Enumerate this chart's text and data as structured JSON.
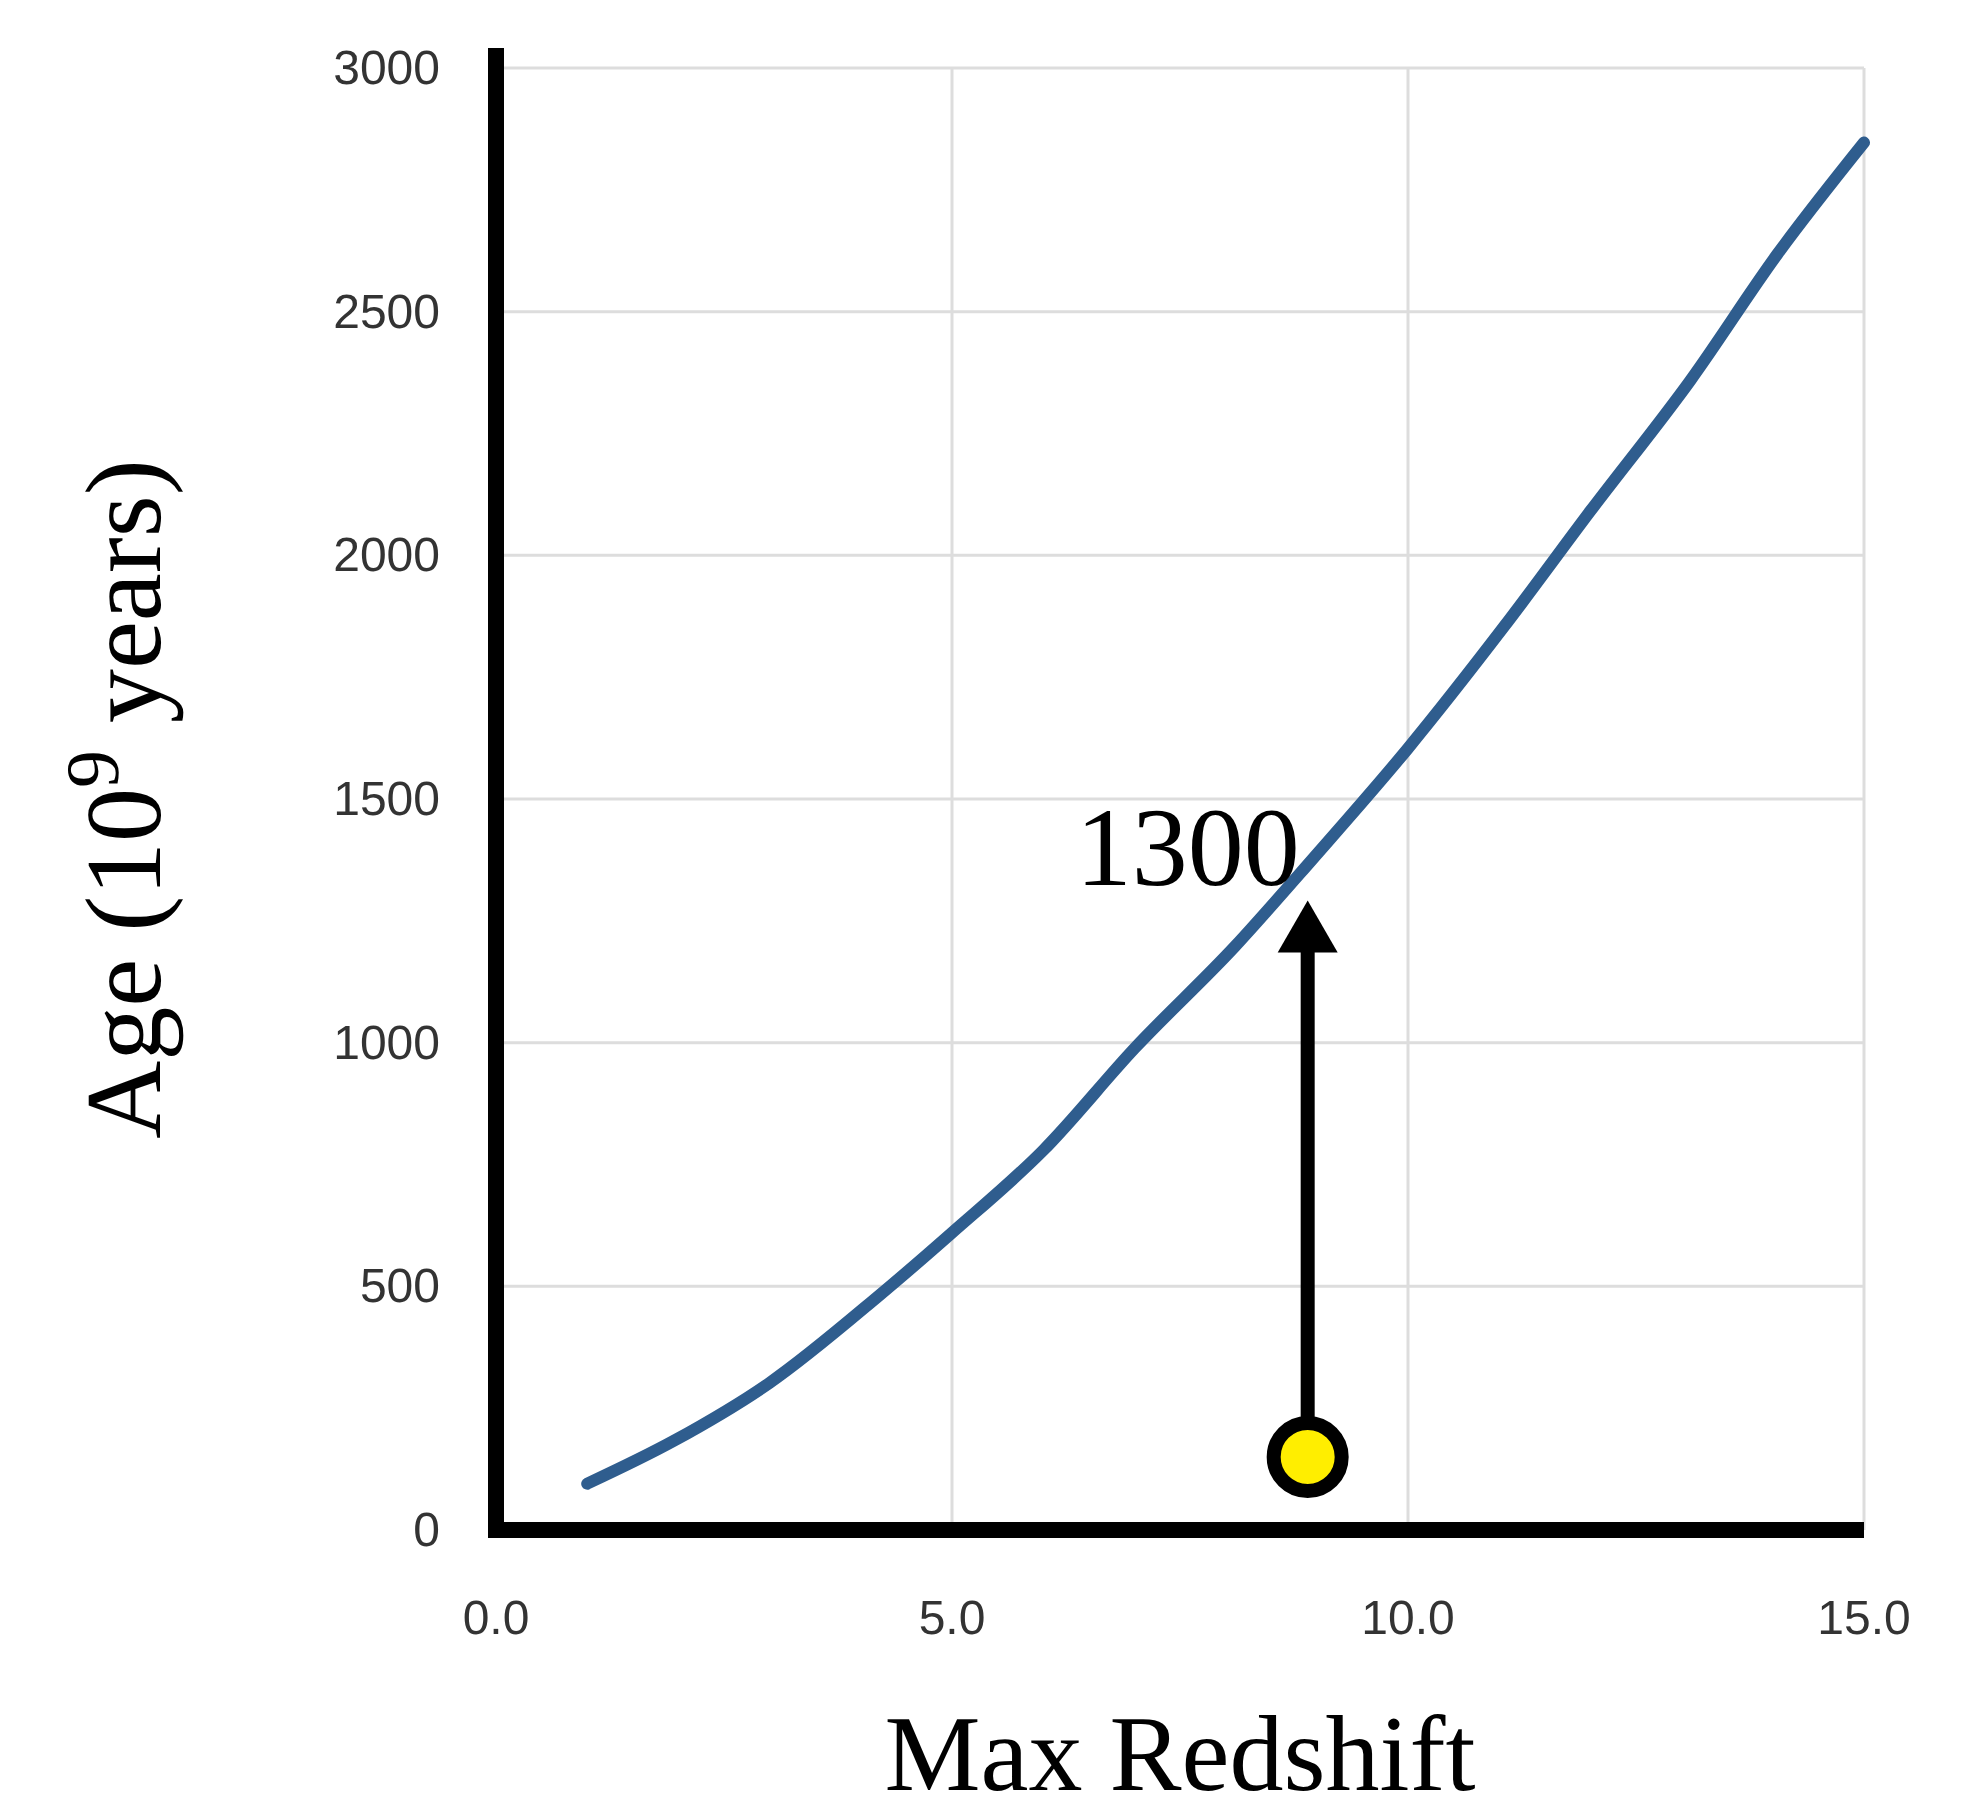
{
  "chart_data": {
    "type": "line",
    "xlabel": "Max Redshift",
    "ylabel": "Age (10$^{9}$ years)",
    "xlim": [
      0,
      15
    ],
    "ylim": [
      0,
      3000
    ],
    "xticks": [
      {
        "value": 0,
        "label": "0.0"
      },
      {
        "value": 5,
        "label": "5.0"
      },
      {
        "value": 10,
        "label": "10.0"
      },
      {
        "value": 15,
        "label": "15.0"
      }
    ],
    "yticks": [
      0,
      500,
      1000,
      1500,
      2000,
      2500,
      3000
    ],
    "grid": true,
    "series": [
      {
        "color": "#2f5d8e",
        "x": [
          1.0,
          1.95,
          3.0,
          4.2,
          5.0,
          6.0,
          7.0,
          8.1,
          8.95,
          10.0,
          11.05,
          12.0,
          13.1,
          14.05,
          15.0
        ],
        "values": [
          95,
          183,
          302,
          481,
          610,
          779,
          988,
          1197,
          1376,
          1604,
          1853,
          2091,
          2360,
          2618,
          2847
        ]
      },
      {
        "type": "scatter",
        "color": "#ffee00",
        "marker": "circle",
        "x": [
          8.9
        ],
        "values": [
          150
        ]
      }
    ],
    "annotations": [
      "1300"
    ]
  }
}
